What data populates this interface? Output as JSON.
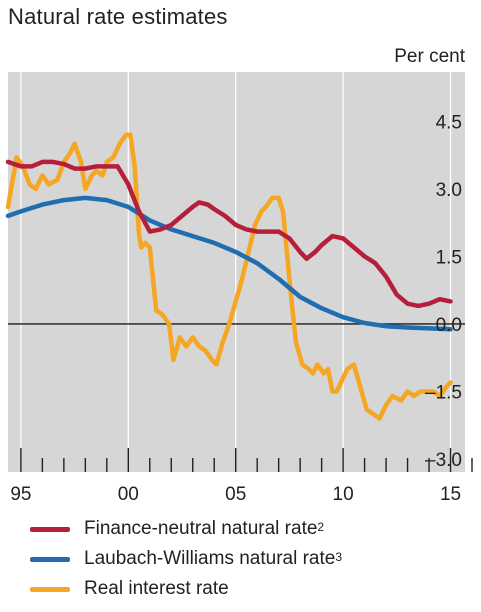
{
  "title": "Natural rate estimates",
  "chart_data": {
    "type": "line",
    "title": "Natural rate estimates",
    "unit_label": "Per cent",
    "xlim": [
      1994.4,
      2016.0
    ],
    "ylim": [
      -3.0,
      6.0
    ],
    "x_ticks": [
      {
        "value": 1995,
        "label": "95"
      },
      {
        "value": 2000,
        "label": "00"
      },
      {
        "value": 2005,
        "label": "05"
      },
      {
        "value": 2010,
        "label": "10"
      },
      {
        "value": 2015,
        "label": "15"
      }
    ],
    "y_ticks": [
      {
        "value": 4.5,
        "label": "4.5"
      },
      {
        "value": 3.0,
        "label": "3.0"
      },
      {
        "value": 1.5,
        "label": "1.5"
      },
      {
        "value": 0.0,
        "label": "0.0"
      },
      {
        "value": -1.5,
        "label": "–1.5"
      },
      {
        "value": -3.0,
        "label": "–3.0"
      }
    ],
    "zero_line": 0.0,
    "grid": true,
    "legend_position": "bottom",
    "series": [
      {
        "key": "real",
        "name": "Real interest rate",
        "color": "#f5a623",
        "points": [
          [
            1994.4,
            2.6
          ],
          [
            1994.8,
            3.7
          ],
          [
            1995.1,
            3.5
          ],
          [
            1995.4,
            3.1
          ],
          [
            1995.7,
            3.0
          ],
          [
            1996.0,
            3.3
          ],
          [
            1996.3,
            3.1
          ],
          [
            1996.7,
            3.2
          ],
          [
            1997.0,
            3.6
          ],
          [
            1997.3,
            3.8
          ],
          [
            1997.5,
            4.0
          ],
          [
            1997.8,
            3.6
          ],
          [
            1998.0,
            3.0
          ],
          [
            1998.3,
            3.3
          ],
          [
            1998.5,
            3.4
          ],
          [
            1998.8,
            3.3
          ],
          [
            1999.0,
            3.6
          ],
          [
            1999.3,
            3.7
          ],
          [
            1999.6,
            4.0
          ],
          [
            1999.9,
            4.2
          ],
          [
            2000.1,
            4.2
          ],
          [
            2000.3,
            3.5
          ],
          [
            2000.5,
            2.0
          ],
          [
            2000.6,
            1.7
          ],
          [
            2000.8,
            1.8
          ],
          [
            2001.0,
            1.7
          ],
          [
            2001.3,
            0.3
          ],
          [
            2001.6,
            0.2
          ],
          [
            2001.9,
            0.0
          ],
          [
            2002.1,
            -0.8
          ],
          [
            2002.4,
            -0.3
          ],
          [
            2002.7,
            -0.5
          ],
          [
            2003.0,
            -0.3
          ],
          [
            2003.3,
            -0.5
          ],
          [
            2003.6,
            -0.6
          ],
          [
            2003.9,
            -0.8
          ],
          [
            2004.1,
            -0.9
          ],
          [
            2004.4,
            -0.4
          ],
          [
            2004.7,
            0.0
          ],
          [
            2005.0,
            0.5
          ],
          [
            2005.3,
            1.0
          ],
          [
            2005.6,
            1.6
          ],
          [
            2005.9,
            2.2
          ],
          [
            2006.2,
            2.5
          ],
          [
            2006.4,
            2.6
          ],
          [
            2006.7,
            2.8
          ],
          [
            2007.0,
            2.8
          ],
          [
            2007.2,
            2.5
          ],
          [
            2007.4,
            1.5
          ],
          [
            2007.6,
            0.5
          ],
          [
            2007.8,
            -0.4
          ],
          [
            2008.1,
            -0.9
          ],
          [
            2008.4,
            -1.0
          ],
          [
            2008.6,
            -1.1
          ],
          [
            2008.8,
            -0.9
          ],
          [
            2009.1,
            -1.1
          ],
          [
            2009.3,
            -1.0
          ],
          [
            2009.5,
            -1.5
          ],
          [
            2009.7,
            -1.5
          ],
          [
            2009.9,
            -1.3
          ],
          [
            2010.2,
            -1.0
          ],
          [
            2010.5,
            -0.9
          ],
          [
            2010.8,
            -1.4
          ],
          [
            2011.1,
            -1.9
          ],
          [
            2011.4,
            -2.0
          ],
          [
            2011.7,
            -2.1
          ],
          [
            2012.0,
            -1.8
          ],
          [
            2012.3,
            -1.6
          ],
          [
            2012.7,
            -1.7
          ],
          [
            2013.0,
            -1.5
          ],
          [
            2013.3,
            -1.6
          ],
          [
            2013.6,
            -1.5
          ],
          [
            2013.9,
            -1.5
          ],
          [
            2014.2,
            -1.5
          ],
          [
            2014.5,
            -1.6
          ],
          [
            2014.8,
            -1.4
          ],
          [
            2015.0,
            -1.3
          ]
        ]
      },
      {
        "key": "lw",
        "name": "Laubach-Williams natural rate",
        "note": "3",
        "color": "#1e6eb0",
        "points": [
          [
            1994.4,
            2.4
          ],
          [
            1995.0,
            2.5
          ],
          [
            1996.0,
            2.65
          ],
          [
            1997.0,
            2.75
          ],
          [
            1998.0,
            2.8
          ],
          [
            1999.0,
            2.75
          ],
          [
            2000.0,
            2.6
          ],
          [
            2001.0,
            2.3
          ],
          [
            2002.0,
            2.1
          ],
          [
            2003.0,
            1.95
          ],
          [
            2004.0,
            1.8
          ],
          [
            2005.0,
            1.6
          ],
          [
            2006.0,
            1.35
          ],
          [
            2007.0,
            1.0
          ],
          [
            2008.0,
            0.6
          ],
          [
            2009.0,
            0.35
          ],
          [
            2010.0,
            0.15
          ],
          [
            2011.0,
            0.02
          ],
          [
            2012.0,
            -0.05
          ],
          [
            2013.0,
            -0.08
          ],
          [
            2014.0,
            -0.1
          ],
          [
            2015.0,
            -0.12
          ]
        ]
      },
      {
        "key": "fn",
        "name": "Finance-neutral natural rate",
        "note": "2",
        "color": "#b51f3c",
        "points": [
          [
            1994.4,
            3.6
          ],
          [
            1995.0,
            3.5
          ],
          [
            1995.5,
            3.5
          ],
          [
            1996.0,
            3.6
          ],
          [
            1996.5,
            3.6
          ],
          [
            1997.0,
            3.55
          ],
          [
            1997.5,
            3.45
          ],
          [
            1998.0,
            3.45
          ],
          [
            1998.5,
            3.5
          ],
          [
            1999.0,
            3.5
          ],
          [
            1999.5,
            3.5
          ],
          [
            2000.0,
            3.1
          ],
          [
            2000.5,
            2.5
          ],
          [
            2001.0,
            2.05
          ],
          [
            2001.5,
            2.1
          ],
          [
            2002.0,
            2.2
          ],
          [
            2002.5,
            2.4
          ],
          [
            2003.0,
            2.6
          ],
          [
            2003.3,
            2.7
          ],
          [
            2003.7,
            2.65
          ],
          [
            2004.0,
            2.55
          ],
          [
            2004.5,
            2.4
          ],
          [
            2005.0,
            2.2
          ],
          [
            2005.5,
            2.1
          ],
          [
            2006.0,
            2.05
          ],
          [
            2006.5,
            2.05
          ],
          [
            2007.0,
            2.05
          ],
          [
            2007.5,
            1.9
          ],
          [
            2008.0,
            1.6
          ],
          [
            2008.3,
            1.45
          ],
          [
            2008.7,
            1.6
          ],
          [
            2009.0,
            1.75
          ],
          [
            2009.5,
            1.95
          ],
          [
            2010.0,
            1.9
          ],
          [
            2010.5,
            1.7
          ],
          [
            2011.0,
            1.5
          ],
          [
            2011.5,
            1.35
          ],
          [
            2012.0,
            1.05
          ],
          [
            2012.5,
            0.65
          ],
          [
            2013.0,
            0.45
          ],
          [
            2013.5,
            0.4
          ],
          [
            2014.0,
            0.45
          ],
          [
            2014.5,
            0.55
          ],
          [
            2015.0,
            0.5
          ]
        ]
      }
    ]
  },
  "legend": [
    {
      "label": "Finance-neutral natural rate",
      "note": "2",
      "color": "#b51f3c"
    },
    {
      "label": "Laubach-Williams natural rate",
      "note": "3",
      "color": "#1e6eb0"
    },
    {
      "label": "Real interest rate",
      "note": "",
      "color": "#f5a623"
    }
  ]
}
